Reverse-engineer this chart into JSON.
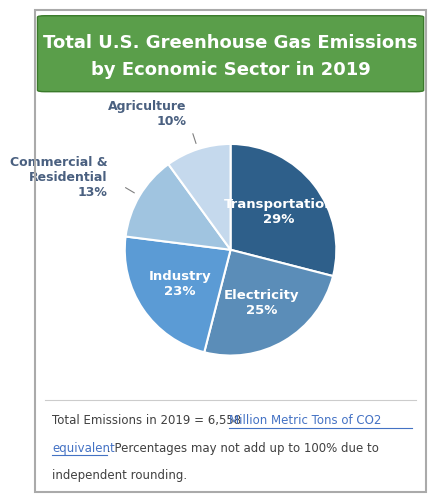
{
  "title_line1": "Total U.S. Greenhouse Gas Emissions",
  "title_line2": "by Economic Sector in 2019",
  "title_bg_color": "#5a9e4a",
  "title_text_color": "#ffffff",
  "sectors": [
    "Transportation",
    "Electricity",
    "Industry",
    "Commercial &\nResidential",
    "Agriculture"
  ],
  "values": [
    29,
    25,
    23,
    13,
    10
  ],
  "colors": [
    "#2e5f8a",
    "#5b8db8",
    "#5b9bd5",
    "#a0c4e0",
    "#c5d9ed"
  ],
  "label_configs": [
    {
      "text": "Transportation\n29%",
      "inside": true,
      "color": "#ffffff"
    },
    {
      "text": "Electricity\n25%",
      "inside": true,
      "color": "#ffffff"
    },
    {
      "text": "Industry\n23%",
      "inside": true,
      "color": "#ffffff"
    },
    {
      "text": "Commercial &\nResidential\n13%",
      "inside": false,
      "color": "#4a6080"
    },
    {
      "text": "Agriculture\n10%",
      "inside": false,
      "color": "#4a6080"
    }
  ],
  "footer_part1": "Total Emissions in 2019 = 6,558 ",
  "footer_link1": "Million Metric Tons of CO2",
  "footer_link2": "equivalent",
  "footer_part2": ". Percentages may not add up to 100% due to",
  "footer_part3": "independent rounding.",
  "footer_link_color": "#4472c4",
  "footer_text_color": "#404040",
  "bg_color": "#ffffff",
  "border_color": "#aaaaaa"
}
